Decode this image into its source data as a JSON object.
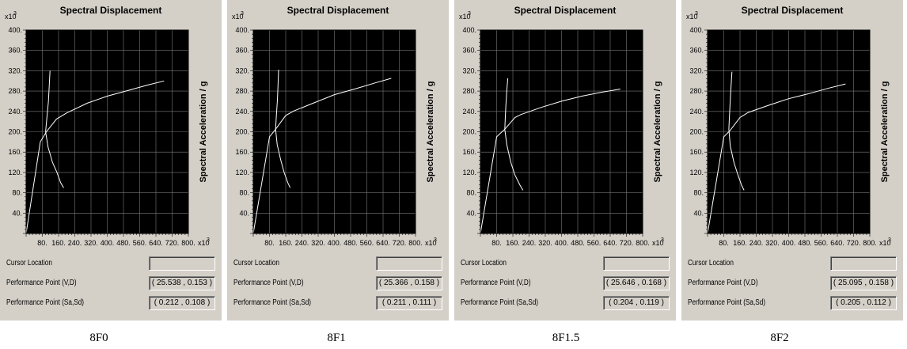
{
  "chart_data": [
    {
      "type": "line",
      "caption": "8F0",
      "title": "Spectral Displacement",
      "ylabel": "Spectral Acceleration / g",
      "x_multiplier": "x10",
      "x_multiplier_exp": "3",
      "y_multiplier": "x10",
      "y_multiplier_exp": "3",
      "xlim": [
        0,
        800000
      ],
      "ylim": [
        0,
        400000
      ],
      "x_ticks": [
        "80.",
        "160.",
        "240.",
        "320.",
        "400.",
        "480.",
        "560.",
        "640.",
        "720.",
        "800."
      ],
      "y_ticks": [
        "40.",
        "80.",
        "120.",
        "160.",
        "200.",
        "240.",
        "280.",
        "320.",
        "360.",
        "400."
      ],
      "grid": true,
      "series": [
        {
          "x": [
            0,
            70000,
            100000,
            150000,
            200000,
            300000,
            400000,
            500000,
            600000,
            680000
          ],
          "y": [
            0,
            180000,
            200000,
            225000,
            237000,
            256000,
            270000,
            281000,
            292000,
            300000
          ]
        },
        {
          "x": [
            118000,
            114000,
            110000,
            103000,
            96000,
            108000,
            130000,
            152000,
            170000,
            185000
          ],
          "y": [
            320000,
            290000,
            260000,
            230000,
            200000,
            170000,
            140000,
            120000,
            100000,
            90000
          ]
        }
      ],
      "info": {
        "cursor_label": "Cursor Location",
        "cursor_value": "",
        "pp_vd_label": "Performance Point (V,D)",
        "pp_vd_value": "( 25.538 , 0.153 )",
        "pp_sasd_label": "Performance Point (Sa,Sd)",
        "pp_sasd_value": "( 0.212 , 0.108 )"
      }
    },
    {
      "type": "line",
      "caption": "8F1",
      "title": "Spectral Displacement",
      "ylabel": "Spectral Acceleration / g",
      "x_multiplier": "x10",
      "x_multiplier_exp": "3",
      "y_multiplier": "x10",
      "y_multiplier_exp": "3",
      "xlim": [
        0,
        800000
      ],
      "ylim": [
        0,
        400000
      ],
      "x_ticks": [
        "80.",
        "160.",
        "240.",
        "320.",
        "400.",
        "480.",
        "560.",
        "640.",
        "720.",
        "800."
      ],
      "y_ticks": [
        "40.",
        "80.",
        "120.",
        "160.",
        "200.",
        "240.",
        "280.",
        "320.",
        "360.",
        "400."
      ],
      "grid": true,
      "series": [
        {
          "x": [
            0,
            80000,
            110000,
            160000,
            200000,
            300000,
            400000,
            500000,
            600000,
            680000
          ],
          "y": [
            0,
            190000,
            205000,
            232000,
            241000,
            257000,
            273000,
            284000,
            296000,
            305000
          ]
        },
        {
          "x": [
            125000,
            122000,
            119000,
            114000,
            110000,
            118000,
            135000,
            152000,
            170000,
            182000
          ],
          "y": [
            322000,
            292000,
            262000,
            232000,
            205000,
            175000,
            145000,
            120000,
            100000,
            90000
          ]
        }
      ],
      "info": {
        "cursor_label": "Cursor Location",
        "cursor_value": "",
        "pp_vd_label": "Performance Point (V,D)",
        "pp_vd_value": "( 25.366 , 0.158 )",
        "pp_sasd_label": "Performance Point (Sa,Sd)",
        "pp_sasd_value": "( 0.211 , 0.111 )"
      }
    },
    {
      "type": "line",
      "caption": "8F1.5",
      "title": "Spectral Displacement",
      "ylabel": "Spectral Acceleration / g",
      "x_multiplier": "x10",
      "x_multiplier_exp": "3",
      "y_multiplier": "x10",
      "y_multiplier_exp": "3",
      "xlim": [
        0,
        800000
      ],
      "ylim": [
        0,
        400000
      ],
      "x_ticks": [
        "80.",
        "160.",
        "240.",
        "320.",
        "400.",
        "480.",
        "560.",
        "640.",
        "720.",
        "800."
      ],
      "y_ticks": [
        "40.",
        "80.",
        "120.",
        "160.",
        "200.",
        "240.",
        "280.",
        "320.",
        "360.",
        "400."
      ],
      "grid": true,
      "series": [
        {
          "x": [
            0,
            80000,
            120000,
            170000,
            200000,
            300000,
            400000,
            500000,
            600000,
            690000
          ],
          "y": [
            0,
            190000,
            205000,
            228000,
            234000,
            248000,
            260000,
            270000,
            278000,
            284000
          ]
        },
        {
          "x": [
            135000,
            130000,
            126000,
            123000,
            120000,
            130000,
            150000,
            170000,
            195000,
            210000
          ],
          "y": [
            305000,
            280000,
            255000,
            230000,
            205000,
            175000,
            140000,
            115000,
            95000,
            85000
          ]
        }
      ],
      "info": {
        "cursor_label": "Cursor Location",
        "cursor_value": "",
        "pp_vd_label": "Performance Point (V,D)",
        "pp_vd_value": "( 25.646 , 0.168 )",
        "pp_sasd_label": "Performance Point (Sa,Sd)",
        "pp_sasd_value": "( 0.204 , 0.119 )"
      }
    },
    {
      "type": "line",
      "caption": "8F2",
      "title": "Spectral Displacement",
      "ylabel": "Spectral Acceleration / g",
      "x_multiplier": "x10",
      "x_multiplier_exp": "3",
      "y_multiplier": "x10",
      "y_multiplier_exp": "3",
      "xlim": [
        0,
        800000
      ],
      "ylim": [
        0,
        400000
      ],
      "x_ticks": [
        "80.",
        "160.",
        "240.",
        "320.",
        "400.",
        "480.",
        "560.",
        "640.",
        "720.",
        "800."
      ],
      "y_ticks": [
        "40.",
        "80.",
        "120.",
        "160.",
        "200.",
        "240.",
        "280.",
        "320.",
        "360.",
        "400."
      ],
      "grid": true,
      "series": [
        {
          "x": [
            0,
            80000,
            110000,
            160000,
            200000,
            300000,
            400000,
            500000,
            600000,
            680000
          ],
          "y": [
            0,
            190000,
            202000,
            228000,
            238000,
            252000,
            265000,
            275000,
            286000,
            294000
          ]
        },
        {
          "x": [
            120000,
            116000,
            112000,
            108000,
            105000,
            112000,
            130000,
            150000,
            168000,
            180000
          ],
          "y": [
            318000,
            290000,
            262000,
            232000,
            205000,
            172000,
            140000,
            115000,
            95000,
            85000
          ]
        }
      ],
      "info": {
        "cursor_label": "Cursor Location",
        "cursor_value": "",
        "pp_vd_label": "Performance Point (V,D)",
        "pp_vd_value": "( 25.095 , 0.158 )",
        "pp_sasd_label": "Performance Point (Sa,Sd)",
        "pp_sasd_value": "( 0.205 , 0.112 )"
      }
    }
  ]
}
